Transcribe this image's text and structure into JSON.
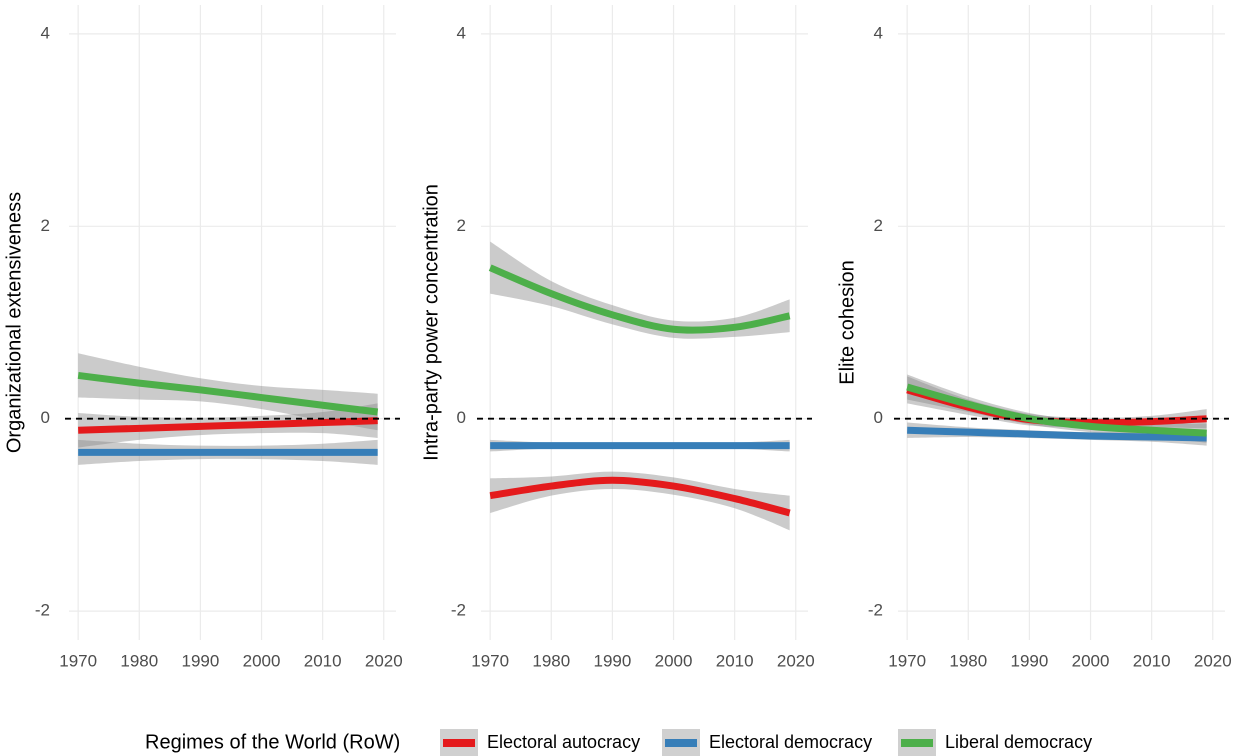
{
  "legend_title": "Regimes of the World (RoW)",
  "chart_data": [
    {
      "type": "line",
      "y_label": "Organizational extensiveness",
      "x": [
        1970,
        1980,
        1990,
        2000,
        2010,
        2019
      ],
      "xlim": [
        1968.5,
        2022
      ],
      "ylim": [
        -2.3,
        4.3
      ],
      "xticks": [
        1970,
        1980,
        1990,
        2000,
        2010,
        2020
      ],
      "yticks": [
        -2,
        0,
        2,
        4
      ],
      "hline": 0,
      "grid": true,
      "series": [
        {
          "name": "Electoral autocracy",
          "color": "#e41a1c",
          "values": [
            -0.12,
            -0.1,
            -0.08,
            -0.06,
            -0.04,
            -0.02
          ],
          "lower": [
            -0.3,
            -0.22,
            -0.17,
            -0.15,
            -0.15,
            -0.2
          ],
          "upper": [
            0.06,
            0.02,
            0.01,
            0.03,
            0.07,
            0.16
          ]
        },
        {
          "name": "Electoral democracy",
          "color": "#377eb8",
          "values": [
            -0.35,
            -0.35,
            -0.35,
            -0.35,
            -0.35,
            -0.35
          ],
          "lower": [
            -0.48,
            -0.44,
            -0.42,
            -0.42,
            -0.44,
            -0.48
          ],
          "upper": [
            -0.22,
            -0.26,
            -0.28,
            -0.28,
            -0.26,
            -0.22
          ]
        },
        {
          "name": "Liberal democracy",
          "color": "#4daf4a",
          "values": [
            0.45,
            0.37,
            0.3,
            0.22,
            0.14,
            0.07
          ],
          "lower": [
            0.22,
            0.2,
            0.18,
            0.1,
            -0.02,
            -0.12
          ],
          "upper": [
            0.68,
            0.54,
            0.42,
            0.34,
            0.3,
            0.26
          ]
        }
      ]
    },
    {
      "type": "line",
      "y_label": "Intra-party power concentration",
      "x": [
        1970,
        1980,
        1990,
        2000,
        2010,
        2019
      ],
      "xlim": [
        1968.5,
        2022
      ],
      "ylim": [
        -2.3,
        4.3
      ],
      "xticks": [
        1970,
        1980,
        1990,
        2000,
        2010,
        2020
      ],
      "yticks": [
        -2,
        0,
        2,
        4
      ],
      "hline": 0,
      "grid": true,
      "series": [
        {
          "name": "Electoral autocracy",
          "color": "#e41a1c",
          "values": [
            -0.8,
            -0.7,
            -0.64,
            -0.7,
            -0.83,
            -0.98
          ],
          "lower": [
            -0.98,
            -0.8,
            -0.73,
            -0.79,
            -0.93,
            -1.16
          ],
          "upper": [
            -0.62,
            -0.6,
            -0.55,
            -0.61,
            -0.73,
            -0.8
          ]
        },
        {
          "name": "Electoral democracy",
          "color": "#377eb8",
          "values": [
            -0.28,
            -0.28,
            -0.28,
            -0.28,
            -0.28,
            -0.28
          ],
          "lower": [
            -0.34,
            -0.31,
            -0.3,
            -0.3,
            -0.31,
            -0.34
          ],
          "upper": [
            -0.22,
            -0.25,
            -0.26,
            -0.26,
            -0.25,
            -0.22
          ]
        },
        {
          "name": "Liberal democracy",
          "color": "#4daf4a",
          "values": [
            1.57,
            1.3,
            1.08,
            0.93,
            0.95,
            1.07
          ],
          "lower": [
            1.3,
            1.17,
            0.98,
            0.84,
            0.85,
            0.9
          ],
          "upper": [
            1.84,
            1.43,
            1.18,
            1.02,
            1.05,
            1.24
          ]
        }
      ]
    },
    {
      "type": "line",
      "y_label": "Elite cohesion",
      "x": [
        1970,
        1980,
        1990,
        2000,
        2010,
        2019
      ],
      "xlim": [
        1968.5,
        2022
      ],
      "ylim": [
        -2.3,
        4.3
      ],
      "xticks": [
        1970,
        1980,
        1990,
        2000,
        2010,
        2020
      ],
      "yticks": [
        -2,
        0,
        2,
        4
      ],
      "hline": 0,
      "grid": true,
      "series": [
        {
          "name": "Electoral autocracy",
          "color": "#e41a1c",
          "values": [
            0.3,
            0.12,
            -0.01,
            -0.04,
            -0.03,
            0.0
          ],
          "lower": [
            0.16,
            0.04,
            -0.07,
            -0.09,
            -0.09,
            -0.1
          ],
          "upper": [
            0.44,
            0.2,
            0.05,
            0.01,
            0.03,
            0.1
          ]
        },
        {
          "name": "Electoral democracy",
          "color": "#377eb8",
          "values": [
            -0.12,
            -0.14,
            -0.16,
            -0.18,
            -0.19,
            -0.2
          ],
          "lower": [
            -0.2,
            -0.19,
            -0.2,
            -0.22,
            -0.24,
            -0.28
          ],
          "upper": [
            -0.04,
            -0.09,
            -0.12,
            -0.14,
            -0.14,
            -0.12
          ]
        },
        {
          "name": "Liberal democracy",
          "color": "#4daf4a",
          "values": [
            0.33,
            0.15,
            0.0,
            -0.08,
            -0.12,
            -0.15
          ],
          "lower": [
            0.2,
            0.07,
            -0.06,
            -0.14,
            -0.19,
            -0.25
          ],
          "upper": [
            0.46,
            0.23,
            0.06,
            -0.02,
            -0.05,
            -0.05
          ]
        }
      ]
    }
  ]
}
